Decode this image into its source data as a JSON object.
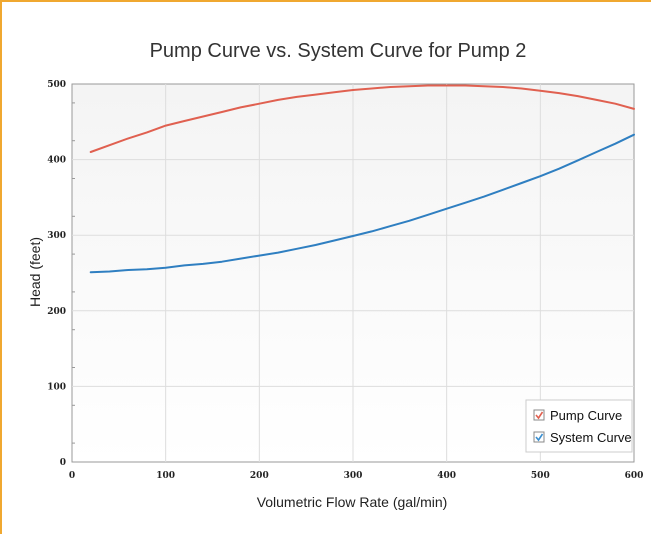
{
  "chart_data": {
    "type": "line",
    "title": "Pump Curve vs. System Curve for Pump 2",
    "xlabel": "Volumetric Flow Rate (gal/min)",
    "ylabel": "Head (feet)",
    "xlim": [
      0,
      600
    ],
    "ylim": [
      0,
      500
    ],
    "xticks": [
      0,
      100,
      200,
      300,
      400,
      500,
      600
    ],
    "yticks": [
      0,
      100,
      200,
      300,
      400,
      500
    ],
    "grid": true,
    "legend_position": "bottom-right",
    "series": [
      {
        "name": "Pump Curve",
        "color": "#e06050",
        "checkbox_color": "#e06050",
        "x": [
          20,
          40,
          60,
          80,
          100,
          120,
          140,
          160,
          180,
          200,
          220,
          240,
          260,
          280,
          300,
          320,
          340,
          360,
          380,
          400,
          420,
          440,
          460,
          480,
          500,
          520,
          540,
          560,
          580,
          600
        ],
        "y": [
          410,
          419,
          428,
          436,
          445,
          451,
          457,
          463,
          469,
          474,
          479,
          483,
          486,
          489,
          492,
          494,
          496,
          497,
          498,
          498,
          498,
          497,
          496,
          494,
          491,
          488,
          484,
          479,
          474,
          467
        ]
      },
      {
        "name": "System Curve",
        "color": "#2f7fc1",
        "checkbox_color": "#3a8fd0",
        "x": [
          20,
          40,
          60,
          80,
          100,
          120,
          140,
          160,
          180,
          200,
          220,
          240,
          260,
          280,
          300,
          320,
          340,
          360,
          380,
          400,
          420,
          440,
          460,
          480,
          500,
          520,
          540,
          560,
          580,
          600
        ],
        "y": [
          251,
          252,
          254,
          255,
          257,
          260,
          262,
          265,
          269,
          273,
          277,
          282,
          287,
          293,
          299,
          305,
          312,
          319,
          327,
          335,
          343,
          351,
          360,
          369,
          378,
          388,
          399,
          410,
          421,
          433
        ]
      }
    ]
  }
}
